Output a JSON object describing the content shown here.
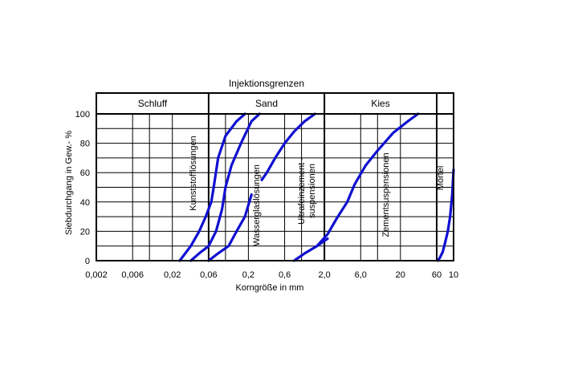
{
  "chart_data": {
    "type": "line",
    "title": "Injektionsgrenzen",
    "xlabel": "Korngröße in mm",
    "ylabel": "Siebdurchgang in Gew.- %",
    "x_scale": "log",
    "xlim": [
      0.002,
      100
    ],
    "ylim": [
      0,
      100
    ],
    "x_tick_labels": [
      "0,002",
      "0,006",
      "0,02",
      "0,06",
      "0,2",
      "0,6",
      "2,0",
      "6,0",
      "20",
      "60",
      "10"
    ],
    "y_ticks": [
      0,
      20,
      40,
      60,
      80,
      100
    ],
    "grid": true,
    "zones": [
      {
        "label": "Schluff",
        "from": 0.002,
        "to": 0.06
      },
      {
        "label": "Sand",
        "from": 0.06,
        "to": 2.0
      },
      {
        "label": "Kies",
        "from": 2.0,
        "to": 60
      },
      {
        "label": "",
        "from": 60,
        "to": 100
      }
    ],
    "line_color": "#1010d0",
    "regions": [
      {
        "label": "Kunststofflösungen",
        "curves": [
          {
            "x": [
              0.025,
              0.035,
              0.045,
              0.055,
              0.065,
              0.07,
              0.08,
              0.1,
              0.14,
              0.18
            ],
            "y": [
              0,
              10,
              20,
              30,
              40,
              50,
              70,
              85,
              95,
              100
            ]
          },
          {
            "x": [
              0.035,
              0.045,
              0.06,
              0.075,
              0.09,
              0.1,
              0.12,
              0.16,
              0.22,
              0.28
            ],
            "y": [
              0,
              5,
              10,
              20,
              35,
              50,
              65,
              80,
              95,
              100
            ]
          }
        ]
      },
      {
        "label": "Wasserglaslösungen",
        "curves": [
          {
            "x": [
              0.06,
              0.08,
              0.11,
              0.14,
              0.18,
              0.22
            ],
            "y": [
              0,
              5,
              10,
              20,
              30,
              45
            ]
          },
          {
            "x": [
              0.3,
              0.35,
              0.45,
              0.6,
              0.8,
              1.1,
              1.5
            ],
            "y": [
              55,
              60,
              70,
              80,
              88,
              95,
              100
            ]
          }
        ]
      },
      {
        "label": "Ultrafeinzement - suspensionen",
        "curves": [
          {
            "x": [
              0.8,
              1.1,
              1.6,
              2.2
            ],
            "y": [
              0,
              5,
              10,
              15
            ]
          }
        ]
      },
      {
        "label": "Zementsuspensionen",
        "curves": [
          {
            "x": [
              1.6,
              2.2,
              3,
              4,
              5,
              7,
              10,
              16,
              25,
              34
            ],
            "y": [
              10,
              18,
              30,
              40,
              52,
              65,
              75,
              87,
              95,
              100
            ]
          }
        ]
      },
      {
        "label": "Mörtel",
        "curves": [
          {
            "x": [
              62,
              66,
              72,
              78,
              84,
              90,
              96,
              100
            ],
            "y": [
              0,
              2,
              6,
              13,
              20,
              30,
              45,
              62
            ]
          }
        ]
      }
    ]
  }
}
